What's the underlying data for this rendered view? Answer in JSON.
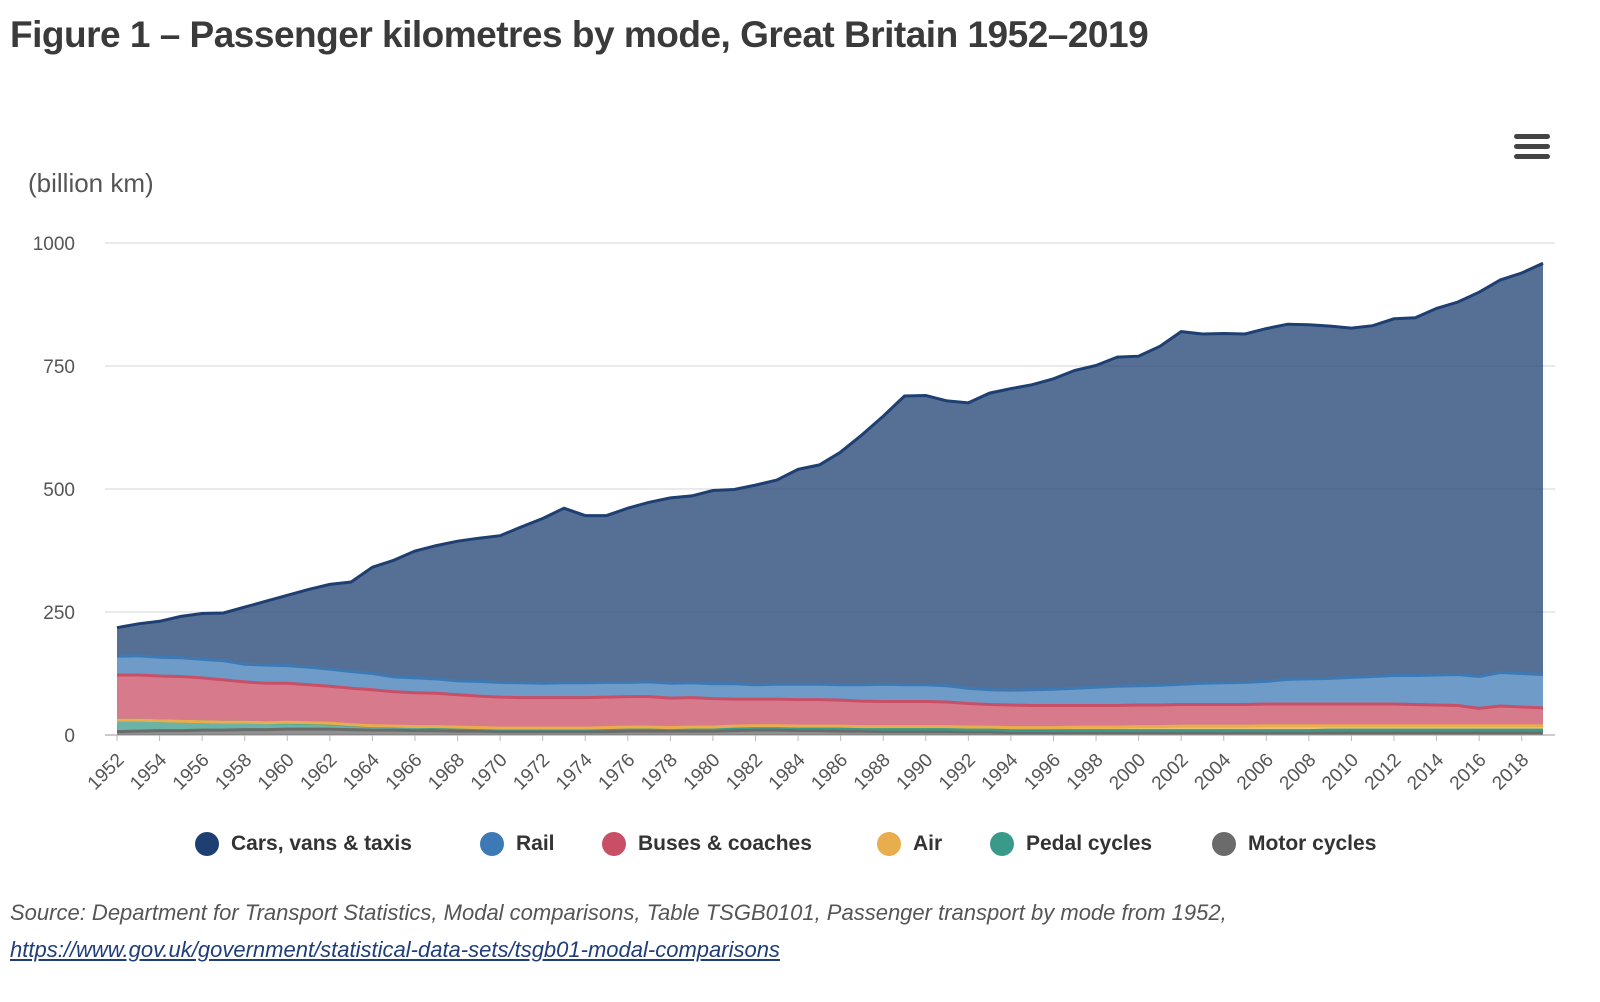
{
  "title": "Figure 1 – Passenger kilometres by mode, Great Britain 1952–2019",
  "menu_icon": "hamburger-menu-icon",
  "source_text": "Source: Department for Transport Statistics, Modal comparisons, Table TSGB0101, Passenger transport by mode from 1952,",
  "source_link": "https://www.gov.uk/government/statistical-data-sets/tsgb01-modal-comparisons",
  "chart_data": {
    "type": "area",
    "stacked": true,
    "ylabel": "(billion km)",
    "ylim": [
      0,
      1000
    ],
    "yticks": [
      0,
      250,
      500,
      750,
      1000
    ],
    "grid": true,
    "legend_placement": "bottom",
    "x": [
      1952,
      1953,
      1954,
      1955,
      1956,
      1957,
      1958,
      1959,
      1960,
      1961,
      1962,
      1963,
      1964,
      1965,
      1966,
      1967,
      1968,
      1969,
      1970,
      1971,
      1972,
      1973,
      1974,
      1975,
      1976,
      1977,
      1978,
      1979,
      1980,
      1981,
      1982,
      1983,
      1984,
      1985,
      1986,
      1987,
      1988,
      1989,
      1990,
      1991,
      1992,
      1993,
      1994,
      1995,
      1996,
      1997,
      1998,
      1999,
      2000,
      2001,
      2002,
      2003,
      2004,
      2005,
      2006,
      2007,
      2008,
      2009,
      2010,
      2011,
      2012,
      2013,
      2014,
      2015,
      2016,
      2017,
      2018,
      2019
    ],
    "xtick_labels": [
      "1952",
      "1954",
      "1956",
      "1958",
      "1960",
      "1962",
      "1964",
      "1966",
      "1968",
      "1970",
      "1972",
      "1974",
      "1976",
      "1978",
      "1980",
      "1982",
      "1984",
      "1986",
      "1988",
      "1990",
      "1992",
      "1994",
      "1996",
      "1998",
      "2000",
      "2002",
      "2004",
      "2006",
      "2008",
      "2010",
      "2012",
      "2014",
      "2016",
      "2018"
    ],
    "series": [
      {
        "name": "Motor cycles",
        "color": "#6b6b6b",
        "values": [
          7,
          8,
          9,
          9,
          10,
          10,
          11,
          11,
          12,
          12,
          12,
          11,
          10,
          10,
          9,
          9,
          8,
          8,
          7,
          7,
          7,
          7,
          7,
          7,
          8,
          8,
          8,
          8,
          8,
          9,
          10,
          10,
          9,
          9,
          8,
          8,
          7,
          7,
          7,
          7,
          6,
          6,
          5,
          5,
          5,
          5,
          5,
          5,
          5,
          5,
          5,
          5,
          5,
          5,
          5,
          5,
          5,
          5,
          5,
          5,
          5,
          5,
          5,
          5,
          5,
          5,
          5,
          5
        ]
      },
      {
        "name": "Pedal cycles",
        "color": "#3a9a8a",
        "values": [
          23,
          22,
          20,
          19,
          17,
          16,
          15,
          14,
          13,
          12,
          11,
          9,
          8,
          7,
          7,
          6,
          6,
          5,
          5,
          5,
          5,
          5,
          5,
          6,
          6,
          6,
          5,
          5,
          5,
          6,
          6,
          6,
          6,
          6,
          6,
          5,
          5,
          5,
          5,
          5,
          5,
          5,
          4,
          4,
          4,
          4,
          4,
          4,
          4,
          4,
          4,
          4,
          4,
          4,
          4,
          4,
          4,
          5,
          5,
          5,
          5,
          5,
          5,
          5,
          5,
          5,
          5,
          5
        ]
      },
      {
        "name": "Air",
        "color": "#e8ad4c",
        "values": [
          0,
          0,
          0,
          0,
          0,
          0,
          0,
          0,
          1,
          1,
          1,
          1,
          1,
          1,
          1,
          2,
          2,
          2,
          2,
          2,
          2,
          2,
          2,
          2,
          2,
          2,
          2,
          3,
          3,
          3,
          3,
          3,
          3,
          3,
          4,
          4,
          5,
          5,
          5,
          5,
          5,
          5,
          6,
          6,
          6,
          7,
          7,
          7,
          8,
          8,
          9,
          9,
          9,
          9,
          10,
          10,
          10,
          9,
          9,
          9,
          9,
          9,
          9,
          9,
          9,
          9,
          9,
          9
        ]
      },
      {
        "name": "Buses & coaches",
        "color": "#c94f66",
        "values": [
          92,
          92,
          91,
          91,
          89,
          86,
          82,
          80,
          79,
          77,
          75,
          74,
          73,
          70,
          69,
          68,
          66,
          64,
          63,
          62,
          62,
          62,
          62,
          62,
          62,
          62,
          60,
          60,
          58,
          55,
          54,
          54,
          54,
          54,
          53,
          52,
          51,
          51,
          51,
          50,
          48,
          46,
          46,
          45,
          45,
          44,
          44,
          44,
          44,
          44,
          44,
          44,
          44,
          44,
          44,
          44,
          44,
          44,
          44,
          44,
          44,
          43,
          42,
          41,
          35,
          40,
          38,
          36
        ]
      },
      {
        "name": "Rail",
        "color": "#3d7ab5",
        "values": [
          38,
          39,
          38,
          38,
          38,
          39,
          36,
          37,
          36,
          36,
          35,
          34,
          33,
          30,
          30,
          29,
          28,
          30,
          30,
          30,
          29,
          30,
          30,
          30,
          29,
          30,
          30,
          30,
          30,
          31,
          29,
          30,
          31,
          31,
          31,
          33,
          35,
          34,
          34,
          33,
          31,
          30,
          30,
          32,
          33,
          35,
          37,
          39,
          39,
          40,
          41,
          43,
          44,
          45,
          46,
          50,
          51,
          52,
          54,
          56,
          58,
          59,
          61,
          63,
          65,
          68,
          68,
          68
        ]
      },
      {
        "name": "Cars, vans & taxis",
        "color": "#1e3f72",
        "values": [
          58,
          65,
          73,
          84,
          93,
          97,
          116,
          130,
          143,
          158,
          172,
          182,
          216,
          237,
          258,
          271,
          284,
          291,
          298,
          317,
          335,
          355,
          340,
          339,
          354,
          365,
          377,
          380,
          393,
          395,
          406,
          415,
          437,
          446,
          473,
          508,
          545,
          587,
          588,
          579,
          580,
          603,
          613,
          620,
          631,
          646,
          654,
          669,
          670,
          689,
          717,
          710,
          710,
          708,
          717,
          722,
          720,
          716,
          710,
          713,
          725,
          727,
          745,
          757,
          781,
          798,
          814,
          836
        ]
      }
    ]
  }
}
